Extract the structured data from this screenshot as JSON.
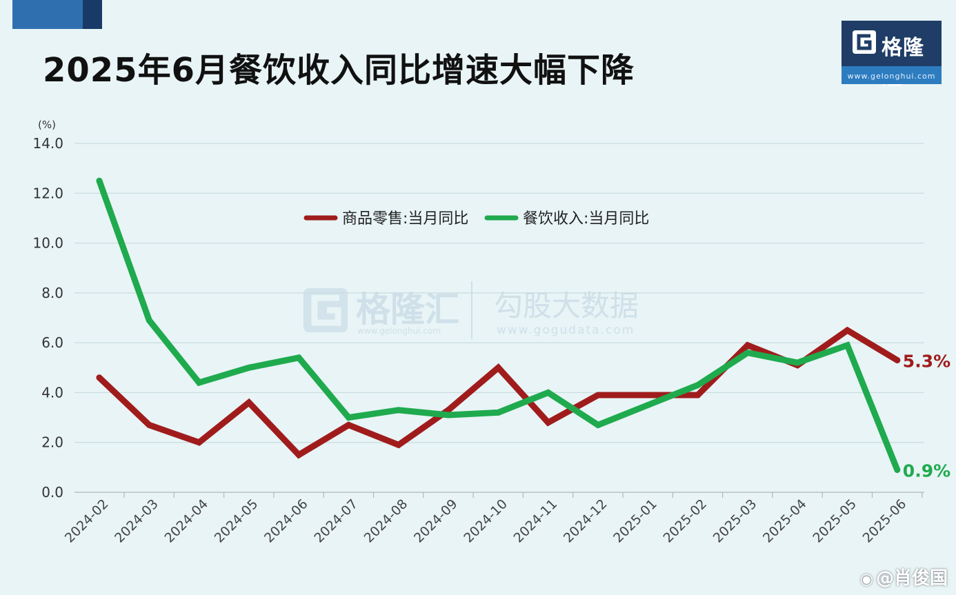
{
  "title": "2025年6月餐饮收入同比增速大幅下降",
  "logo": {
    "name": "格隆汇",
    "url": "www.gelonghui.com"
  },
  "watermark": {
    "brand": "格隆汇",
    "brand_url": "www.gelonghui.com",
    "product": "勾股大数据",
    "product_url": "www.gogudata.com"
  },
  "footer": {
    "icon": "weibo-icon",
    "text": "@肖俊国"
  },
  "colors": {
    "background": "#e8f4f6",
    "retail": "#a01c1c",
    "catering": "#1faa4e",
    "grid": "#c9dcdf"
  },
  "chart_data": {
    "type": "line",
    "title": "",
    "xlabel": "",
    "ylabel": "(%)",
    "ylim": [
      0,
      14
    ],
    "yticks": [
      "0.0",
      "2.0",
      "4.0",
      "6.0",
      "8.0",
      "10.0",
      "12.0",
      "14.0"
    ],
    "grid": true,
    "legend_position": "top-center",
    "categories": [
      "2024-02",
      "2024-03",
      "2024-04",
      "2024-05",
      "2024-06",
      "2024-07",
      "2024-08",
      "2024-09",
      "2024-10",
      "2024-11",
      "2024-12",
      "2025-01",
      "2025-02",
      "2025-03",
      "2025-04",
      "2025-05",
      "2025-06"
    ],
    "series": [
      {
        "name": "商品零售:当月同比",
        "color": "#a01c1c",
        "values": [
          4.6,
          2.7,
          2.0,
          3.6,
          1.5,
          2.7,
          1.9,
          3.3,
          5.0,
          2.8,
          3.9,
          3.9,
          3.9,
          5.9,
          5.1,
          6.5,
          5.3
        ],
        "end_label": "5.3%"
      },
      {
        "name": "餐饮收入:当月同比",
        "color": "#1faa4e",
        "values": [
          12.5,
          6.9,
          4.4,
          5.0,
          5.4,
          3.0,
          3.3,
          3.1,
          3.2,
          4.0,
          2.7,
          3.5,
          4.3,
          5.6,
          5.2,
          5.9,
          0.9
        ],
        "end_label": "0.9%"
      }
    ]
  }
}
